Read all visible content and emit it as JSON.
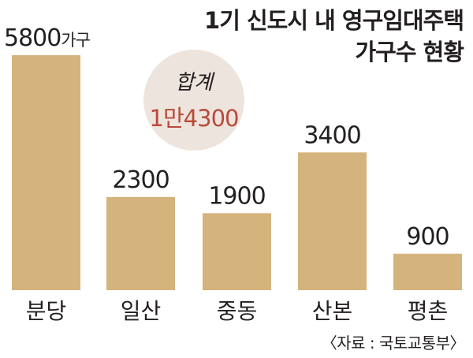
{
  "chart_data": {
    "type": "bar",
    "title": [
      "1기 신도시 내 영구임대주택",
      "가구수 현황"
    ],
    "categories": [
      "분당",
      "일산",
      "중동",
      "산본",
      "평촌"
    ],
    "values": [
      5800,
      2300,
      1900,
      3400,
      900
    ],
    "value_labels": [
      "5800",
      "2300",
      "1900",
      "3400",
      "900"
    ],
    "unit": "가구",
    "ylim": [
      0,
      5800
    ],
    "grid": false,
    "total_label": "합계",
    "total_value": "1만4300",
    "source": "〈자료 : 국토교통부〉",
    "bar_color": "#d4b47c",
    "total_bubble_color": "#ede4dd",
    "total_value_color": "#b94a3a"
  }
}
